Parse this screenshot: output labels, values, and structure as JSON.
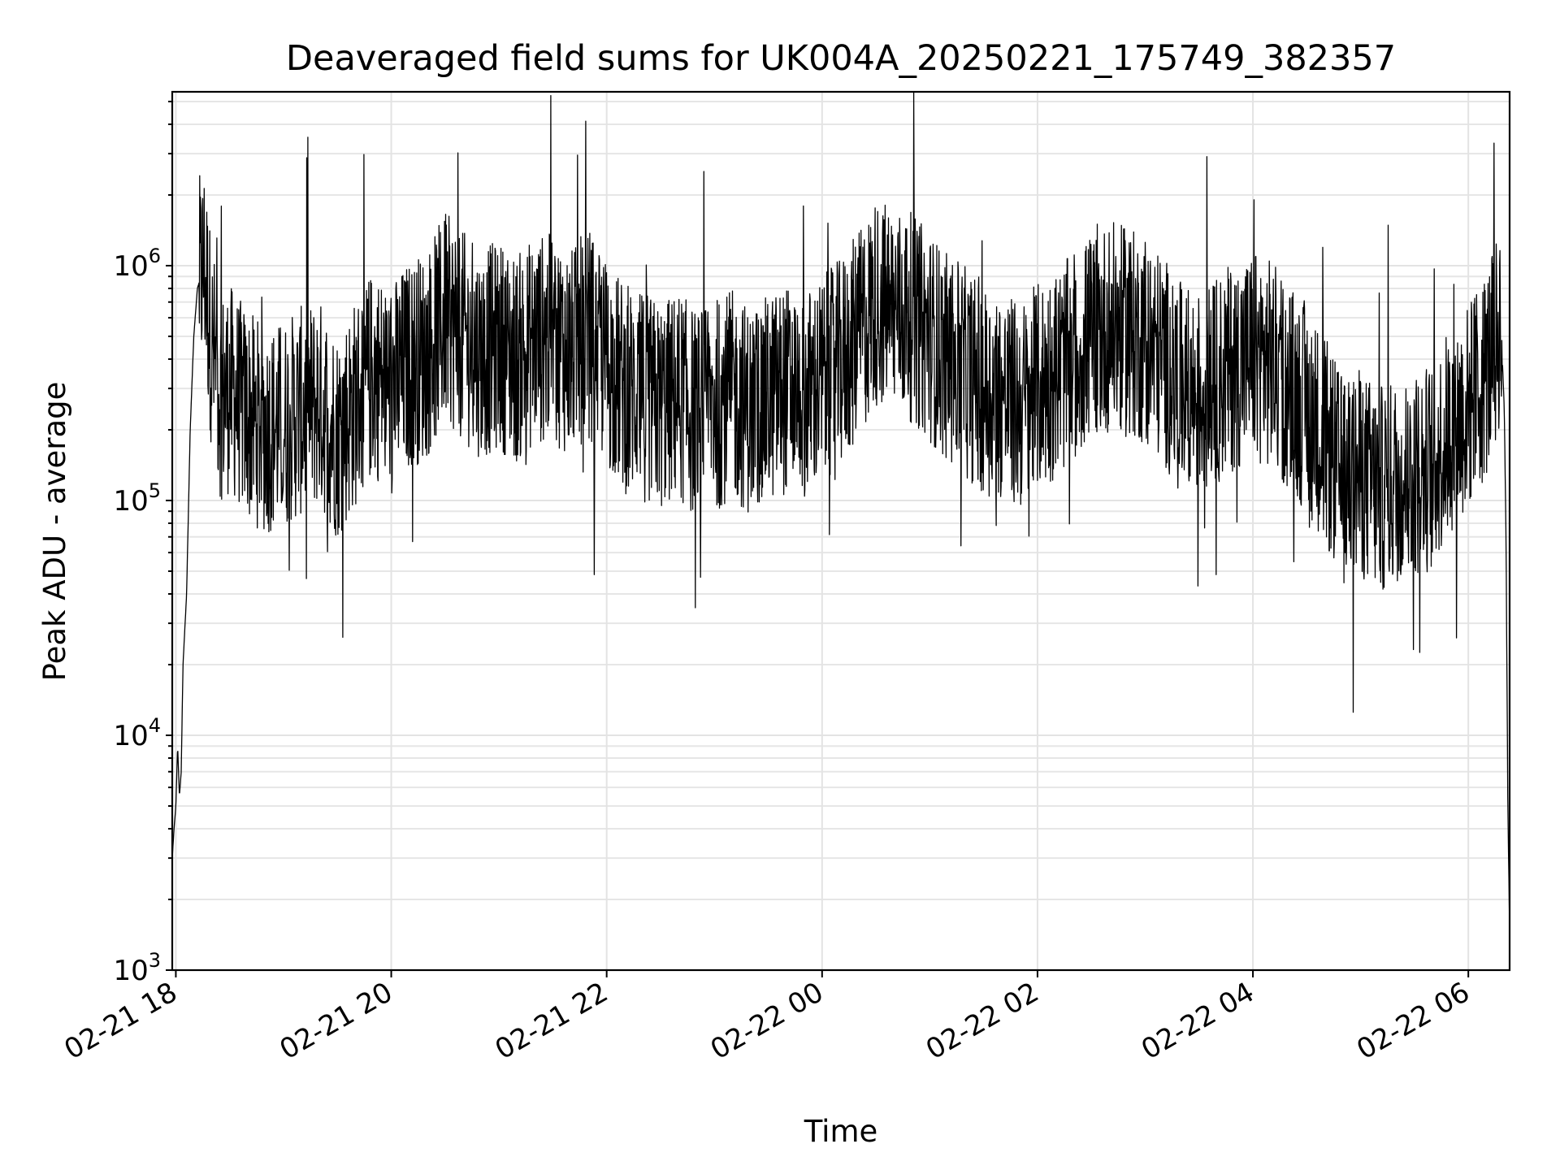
{
  "chart_data": {
    "type": "line",
    "title": "Deaveraged field sums for UK004A_20250221_175749_382357",
    "xlabel": "Time",
    "ylabel": "Peak ADU - average",
    "yscale": "log",
    "ylim": [
      1000,
      5500000
    ],
    "xlim": [
      "2025-02-21 17:58",
      "2025-02-22 06:23"
    ],
    "grid": true,
    "line_color": "#000000",
    "x_ticks": [
      "02-21 18",
      "02-21 20",
      "02-21 22",
      "02-22 00",
      "02-22 02",
      "02-22 04",
      "02-22 06"
    ],
    "y_ticks": [
      {
        "base": "10",
        "exp": "3",
        "value": 1000
      },
      {
        "base": "10",
        "exp": "4",
        "value": 10000
      },
      {
        "base": "10",
        "exp": "5",
        "value": 100000
      },
      {
        "base": "10",
        "exp": "6",
        "value": 1000000
      }
    ],
    "series": [
      {
        "x": [
          "2025-02-21 17:58",
          "2025-02-21 17:59",
          "2025-02-21 18:00",
          "2025-02-21 18:01",
          "2025-02-21 18:02",
          "2025-02-21 18:03",
          "2025-02-21 18:04",
          "2025-02-21 18:06",
          "2025-02-21 18:08",
          "2025-02-21 18:10",
          "2025-02-21 18:12",
          "2025-02-21 18:14",
          "2025-02-21 18:16",
          "2025-02-21 18:20",
          "2025-02-21 18:25",
          "2025-02-21 18:30",
          "2025-02-21 18:40",
          "2025-02-21 18:50",
          "2025-02-21 19:00",
          "2025-02-21 19:10",
          "2025-02-21 19:20",
          "2025-02-21 19:30",
          "2025-02-21 19:40",
          "2025-02-21 19:50",
          "2025-02-21 20:00",
          "2025-02-21 20:10",
          "2025-02-21 20:20",
          "2025-02-21 20:30",
          "2025-02-21 20:40",
          "2025-02-21 20:50",
          "2025-02-21 21:00",
          "2025-02-21 21:10",
          "2025-02-21 21:20",
          "2025-02-21 21:30",
          "2025-02-21 21:40",
          "2025-02-21 21:50",
          "2025-02-21 22:00",
          "2025-02-21 22:10",
          "2025-02-21 22:20",
          "2025-02-21 22:30",
          "2025-02-21 22:40",
          "2025-02-21 22:50",
          "2025-02-21 23:00",
          "2025-02-21 23:10",
          "2025-02-21 23:20",
          "2025-02-21 23:30",
          "2025-02-21 23:40",
          "2025-02-21 23:50",
          "2025-02-22 00:00",
          "2025-02-22 00:10",
          "2025-02-22 00:20",
          "2025-02-22 00:30",
          "2025-02-22 00:40",
          "2025-02-22 00:50",
          "2025-02-22 01:00",
          "2025-02-22 01:10",
          "2025-02-22 01:20",
          "2025-02-22 01:30",
          "2025-02-22 01:40",
          "2025-02-22 01:50",
          "2025-02-22 02:00",
          "2025-02-22 02:10",
          "2025-02-22 02:20",
          "2025-02-22 02:30",
          "2025-02-22 02:40",
          "2025-02-22 02:50",
          "2025-02-22 03:00",
          "2025-02-22 03:10",
          "2025-02-22 03:20",
          "2025-02-22 03:30",
          "2025-02-22 03:40",
          "2025-02-22 03:50",
          "2025-02-22 04:00",
          "2025-02-22 04:10",
          "2025-02-22 04:20",
          "2025-02-22 04:30",
          "2025-02-22 04:40",
          "2025-02-22 04:50",
          "2025-02-22 05:00",
          "2025-02-22 05:10",
          "2025-02-22 05:20",
          "2025-02-22 05:30",
          "2025-02-22 05:40",
          "2025-02-22 05:50",
          "2025-02-22 06:00",
          "2025-02-22 06:10",
          "2025-02-22 06:15",
          "2025-02-22 06:18",
          "2025-02-22 06:20",
          "2025-02-22 06:21",
          "2025-02-22 06:22",
          "2025-02-22 06:23"
        ],
        "y": [
          3000,
          4000,
          5000,
          9000,
          5500,
          7000,
          20000,
          40000,
          200000,
          500000,
          800000,
          900000,
          1000000,
          450000,
          280000,
          300000,
          230000,
          200000,
          210000,
          240000,
          260000,
          190000,
          260000,
          350000,
          300000,
          380000,
          420000,
          600000,
          500000,
          420000,
          460000,
          400000,
          480000,
          500000,
          420000,
          520000,
          380000,
          300000,
          280000,
          250000,
          280000,
          230000,
          260000,
          280000,
          240000,
          270000,
          300000,
          280000,
          320000,
          380000,
          500000,
          700000,
          650000,
          600000,
          500000,
          400000,
          350000,
          300000,
          280000,
          250000,
          300000,
          350000,
          400000,
          500000,
          550000,
          520000,
          480000,
          400000,
          300000,
          280000,
          320000,
          380000,
          420000,
          380000,
          300000,
          250000,
          180000,
          120000,
          130000,
          110000,
          120000,
          130000,
          140000,
          200000,
          250000,
          350000,
          450000,
          600000,
          250000,
          70000,
          5000,
          1500
        ]
      }
    ]
  }
}
